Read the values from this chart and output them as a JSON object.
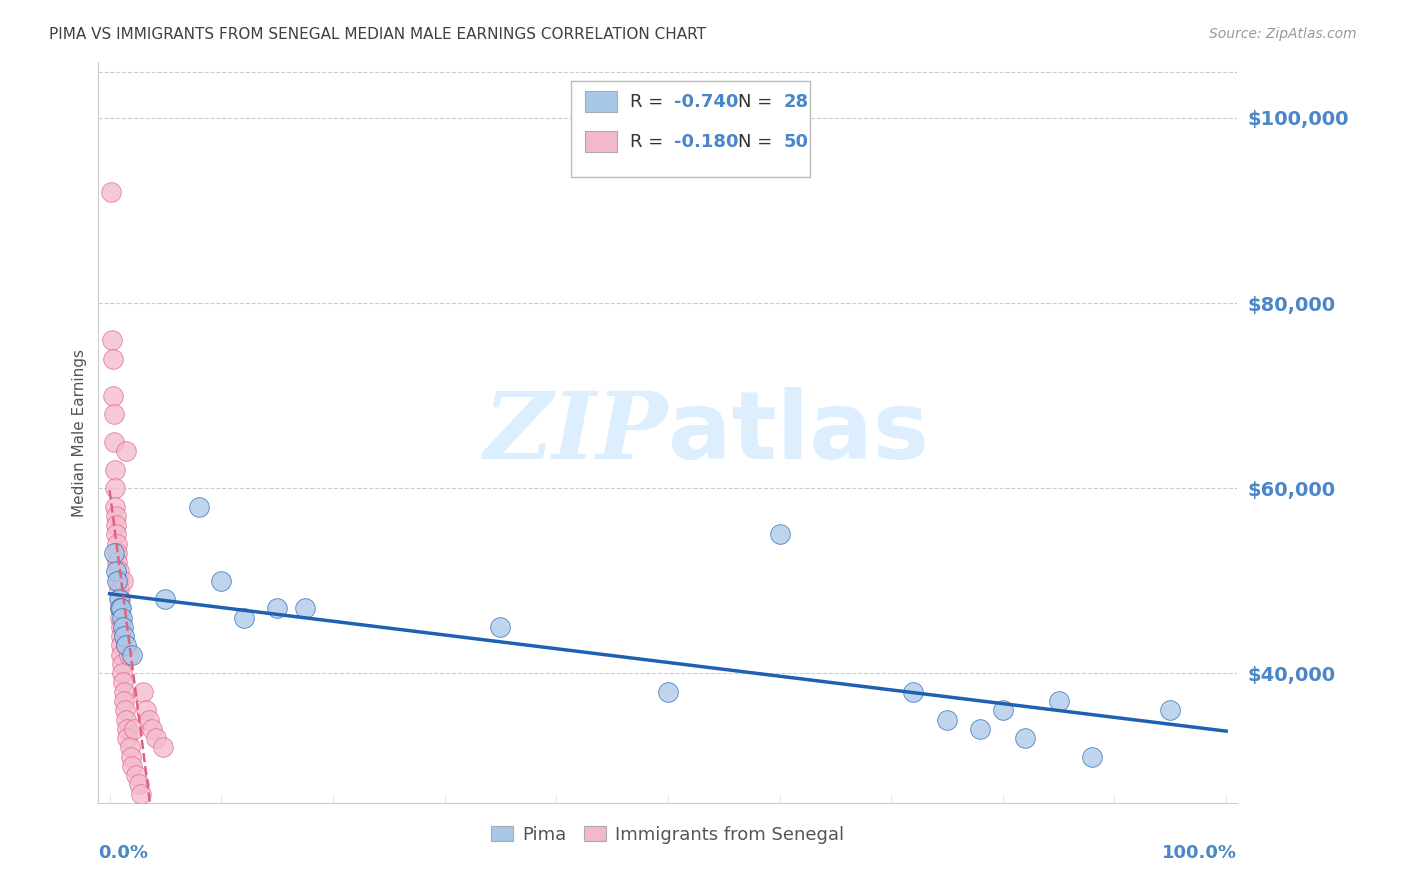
{
  "title": "PIMA VS IMMIGRANTS FROM SENEGAL MEDIAN MALE EARNINGS CORRELATION CHART",
  "source": "Source: ZipAtlas.com",
  "ylabel": "Median Male Earnings",
  "y_tick_labels": [
    "$40,000",
    "$60,000",
    "$80,000",
    "$100,000"
  ],
  "y_tick_values": [
    40000,
    60000,
    80000,
    100000
  ],
  "y_min": 26000,
  "y_max": 106000,
  "x_min": -0.01,
  "x_max": 1.01,
  "blue_color": "#a8c8e8",
  "pink_color": "#f4b8cc",
  "line_blue": "#2060b0",
  "line_pink": "#e06080",
  "title_color": "#404040",
  "axis_label_color": "#4a86c8",
  "source_color": "#999999",
  "background_color": "#ffffff",
  "watermark_color": "#ddeeff",
  "pima_x": [
    0.004,
    0.006,
    0.007,
    0.008,
    0.009,
    0.01,
    0.011,
    0.012,
    0.013,
    0.015,
    0.02,
    0.05,
    0.08,
    0.1,
    0.12,
    0.15,
    0.175,
    0.35,
    0.5,
    0.6,
    0.72,
    0.75,
    0.78,
    0.8,
    0.82,
    0.85,
    0.88,
    0.95
  ],
  "pima_y": [
    53000,
    51000,
    50000,
    48000,
    47000,
    47000,
    46000,
    45000,
    44000,
    43000,
    42000,
    48000,
    58000,
    50000,
    46000,
    47000,
    47000,
    45000,
    38000,
    55000,
    38000,
    35000,
    34000,
    36000,
    33000,
    37000,
    31000,
    36000
  ],
  "senegal_x": [
    0.001,
    0.002,
    0.003,
    0.003,
    0.004,
    0.004,
    0.005,
    0.005,
    0.005,
    0.006,
    0.006,
    0.006,
    0.007,
    0.007,
    0.007,
    0.008,
    0.008,
    0.008,
    0.009,
    0.009,
    0.009,
    0.01,
    0.01,
    0.01,
    0.01,
    0.011,
    0.011,
    0.012,
    0.012,
    0.013,
    0.013,
    0.014,
    0.015,
    0.015,
    0.016,
    0.016,
    0.017,
    0.018,
    0.019,
    0.02,
    0.022,
    0.024,
    0.026,
    0.028,
    0.03,
    0.033,
    0.035,
    0.038,
    0.042,
    0.048
  ],
  "senegal_y": [
    92000,
    76000,
    74000,
    70000,
    68000,
    65000,
    62000,
    60000,
    58000,
    57000,
    56000,
    55000,
    54000,
    53000,
    52000,
    51000,
    50000,
    49000,
    48000,
    47000,
    46000,
    45000,
    44000,
    43000,
    42000,
    41000,
    40000,
    50000,
    39000,
    38000,
    37000,
    36000,
    35000,
    64000,
    34000,
    33000,
    42000,
    32000,
    31000,
    30000,
    34000,
    29000,
    28000,
    27000,
    38000,
    36000,
    35000,
    34000,
    33000,
    32000
  ]
}
